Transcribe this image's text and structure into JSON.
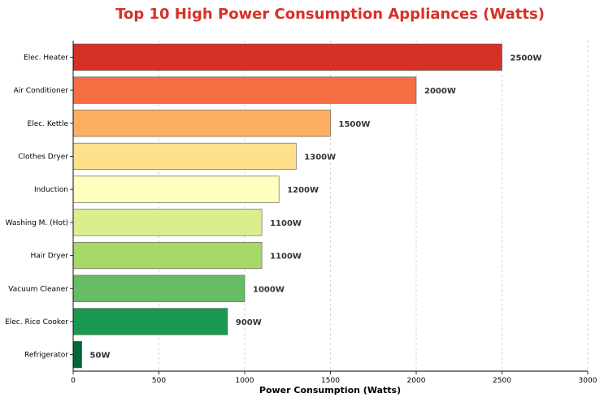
{
  "chart_data": {
    "type": "bar",
    "orientation": "horizontal",
    "title": "Top 10 High Power Consumption Appliances (Watts)",
    "xlabel": "Power Consumption (Watts)",
    "ylabel": "",
    "xlim": [
      0,
      3000
    ],
    "xticks": [
      "0",
      "500",
      "1000",
      "1500",
      "2000",
      "2500",
      "3000"
    ],
    "grid": "x-dashed",
    "categories": [
      "Elec. Heater",
      "Air Conditioner",
      "Elec. Kettle",
      "Clothes Dryer",
      "Induction",
      "Washing M. (Hot)",
      "Hair Dryer",
      "Vacuum Cleaner",
      "Elec. Rice Cooker",
      "Refrigerator"
    ],
    "values": [
      2500,
      2000,
      1500,
      1300,
      1200,
      1100,
      1100,
      1000,
      900,
      50
    ],
    "value_labels": [
      "2500W",
      "2000W",
      "1500W",
      "1300W",
      "1200W",
      "1100W",
      "1100W",
      "1000W",
      "900W",
      "50W"
    ],
    "colors": [
      "#d73027",
      "#f46d43",
      "#fdae61",
      "#fee08b",
      "#ffffbf",
      "#d9ef8b",
      "#a6d96a",
      "#66bd63",
      "#1a9850",
      "#006837"
    ],
    "title_color": "#d73027"
  }
}
